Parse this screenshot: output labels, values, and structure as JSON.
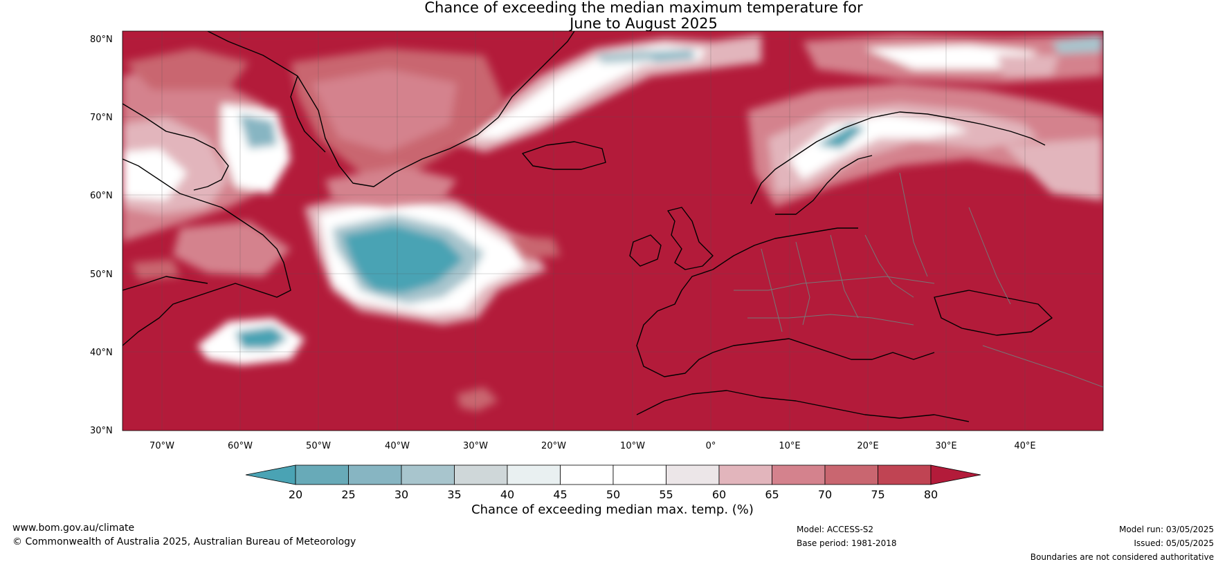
{
  "title": {
    "line1": "Chance of exceeding the median maximum temperature for",
    "line2": "June to August 2025"
  },
  "map": {
    "lat_labels": [
      "80°N",
      "70°N",
      "60°N",
      "50°N",
      "40°N",
      "30°N"
    ],
    "lon_labels": [
      "70°W",
      "60°W",
      "50°W",
      "40°W",
      "30°W",
      "20°W",
      "10°W",
      "0°",
      "10°E",
      "20°E",
      "30°E",
      "40°E"
    ],
    "extent": {
      "lon_min": -75,
      "lon_max": 50,
      "lat_min": 30,
      "lat_max": 81
    },
    "colors": {
      "above80": "#b31b3a",
      "below20": "#4ba3b4"
    }
  },
  "colorbar": {
    "ticks": [
      "20",
      "25",
      "30",
      "35",
      "40",
      "45",
      "50",
      "55",
      "60",
      "65",
      "70",
      "75",
      "80"
    ],
    "colors": [
      "#4aa3b4",
      "#68aab8",
      "#87b5c2",
      "#a8c5cd",
      "#cfd7d9",
      "#e9f0f1",
      "#ffffff",
      "#ffffff",
      "#ece6e8",
      "#e2b5bc",
      "#d4828d",
      "#c96670",
      "#c04453",
      "#b31b3a"
    ],
    "label": "Chance of exceeding median max. temp. (%)"
  },
  "footer": {
    "website": "www.bom.gov.au/climate",
    "copyright": "© Commonwealth of Australia 2025, Australian Bureau of Meteorology",
    "model": "Model: ACCESS-S2",
    "base_period": "Base period: 1981-2018",
    "model_run": "Model run: 03/05/2025",
    "issued": "Issued: 05/05/2025",
    "disclaimer": "Boundaries are not considered authoritative"
  }
}
